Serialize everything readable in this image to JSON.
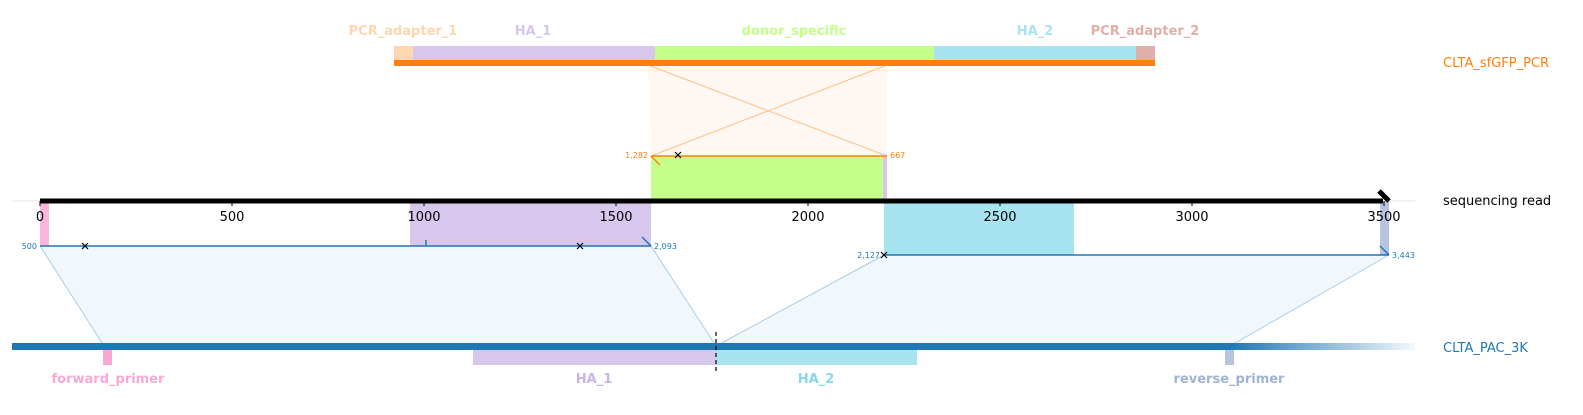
{
  "tracks": {
    "pcr_template": {
      "name": "CLTA_sfGFP_PCR",
      "color": "#ff7f0e",
      "features": [
        {
          "name": "PCR_adapter_1",
          "color": "#ffd6b0"
        },
        {
          "name": "HA_1",
          "color": "#d8c7ec"
        },
        {
          "name": "donor_specific",
          "color": "#c4ff8c"
        },
        {
          "name": "HA_2",
          "color": "#a8e4f0"
        },
        {
          "name": "PCR_adapter_2",
          "color": "#e0b0a8"
        }
      ]
    },
    "read": {
      "name": "sequencing read",
      "axis_ticks": [
        "0",
        "500",
        "1000",
        "1500",
        "2000",
        "2500",
        "3000",
        "3500"
      ]
    },
    "genome": {
      "name": "CLTA_PAC_3K",
      "color": "#1f77b4",
      "features": [
        {
          "name": "forward_primer",
          "color": "#f9a8d4"
        },
        {
          "name": "HA_1",
          "color": "#c9b3e4"
        },
        {
          "name": "HA_2",
          "color": "#88d6ea"
        },
        {
          "name": "reverse_primer",
          "color": "#9fb3d6"
        }
      ]
    }
  },
  "alignments": {
    "donor": {
      "start_label": "1,282",
      "end_label": "667",
      "color": "#ff7f0e"
    },
    "genome_left": {
      "start_label": "500",
      "end_label": "2,093",
      "color": "#1f77b4"
    },
    "genome_right": {
      "start_label": "2,127",
      "end_label": "3,443",
      "color": "#1f77b4"
    }
  }
}
